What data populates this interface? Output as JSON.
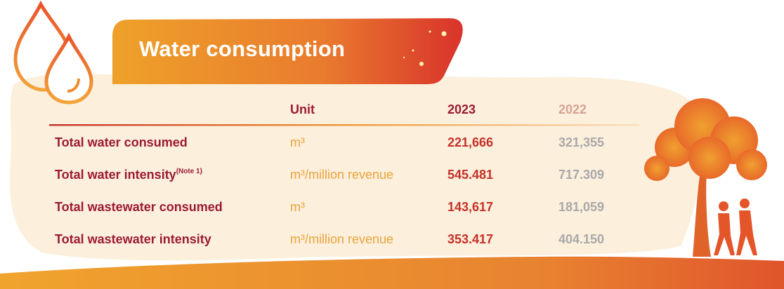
{
  "header": {
    "title": "Water consumption"
  },
  "table": {
    "columns": [
      "Unit",
      "2023",
      "2022"
    ],
    "rows": [
      {
        "item": "Total water consumed",
        "unit": "m³",
        "values": [
          "221,666",
          "321,355"
        ]
      },
      {
        "item": "Total water intensity",
        "note": "(Note 1)",
        "unit": "m³/million revenue",
        "values": [
          "545.481",
          "717.309"
        ]
      },
      {
        "item": "Total wastewater consumed",
        "unit": "m³",
        "values": [
          "143,617",
          "181,059"
        ]
      },
      {
        "item": "Total wastewater intensity",
        "unit": "m³/million revenue",
        "values": [
          "353.417",
          "404.150"
        ]
      }
    ]
  }
}
